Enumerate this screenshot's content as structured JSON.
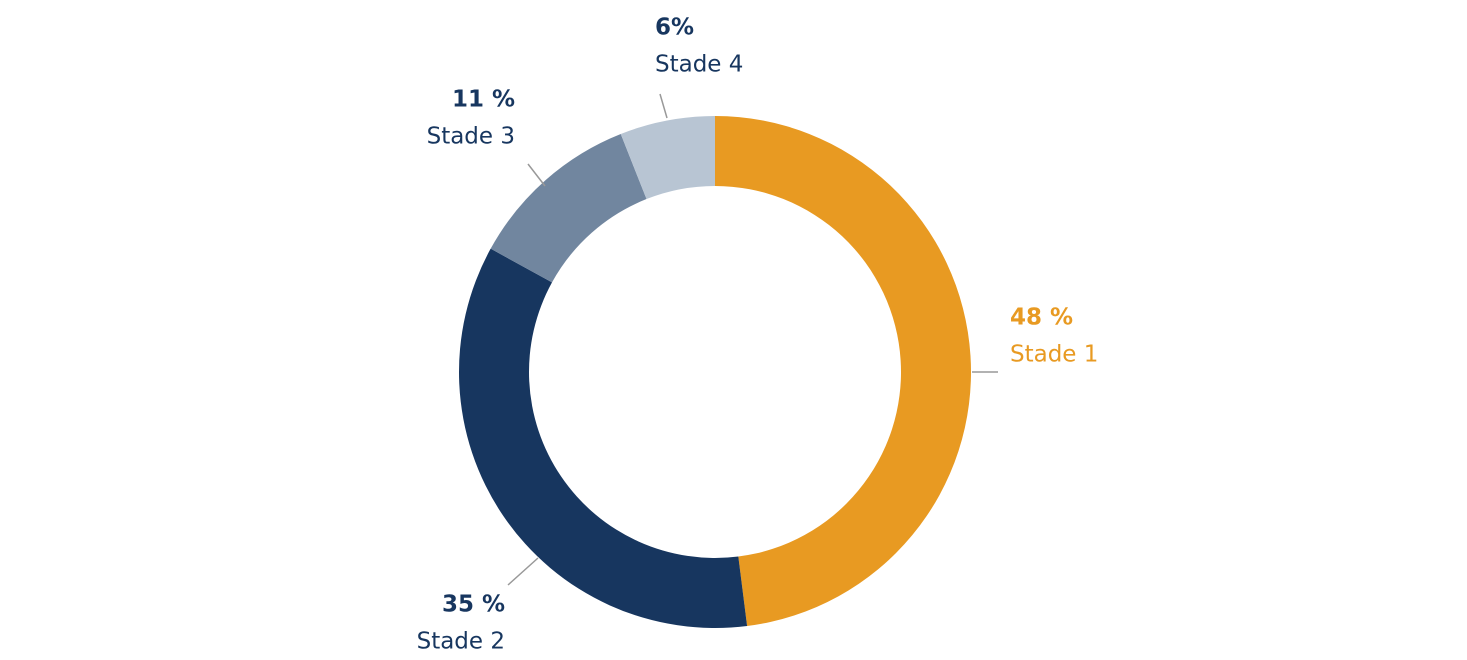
{
  "chart_data": {
    "type": "donut",
    "categories": [
      "Stade 1",
      "Stade 2",
      "Stade 3",
      "Stade 4"
    ],
    "values": [
      48,
      35,
      11,
      6
    ],
    "value_labels": [
      "48 %",
      "35 %",
      "11 %",
      "6%"
    ],
    "colors": [
      "#e89a22",
      "#17365f",
      "#71869f",
      "#b8c5d3"
    ]
  }
}
